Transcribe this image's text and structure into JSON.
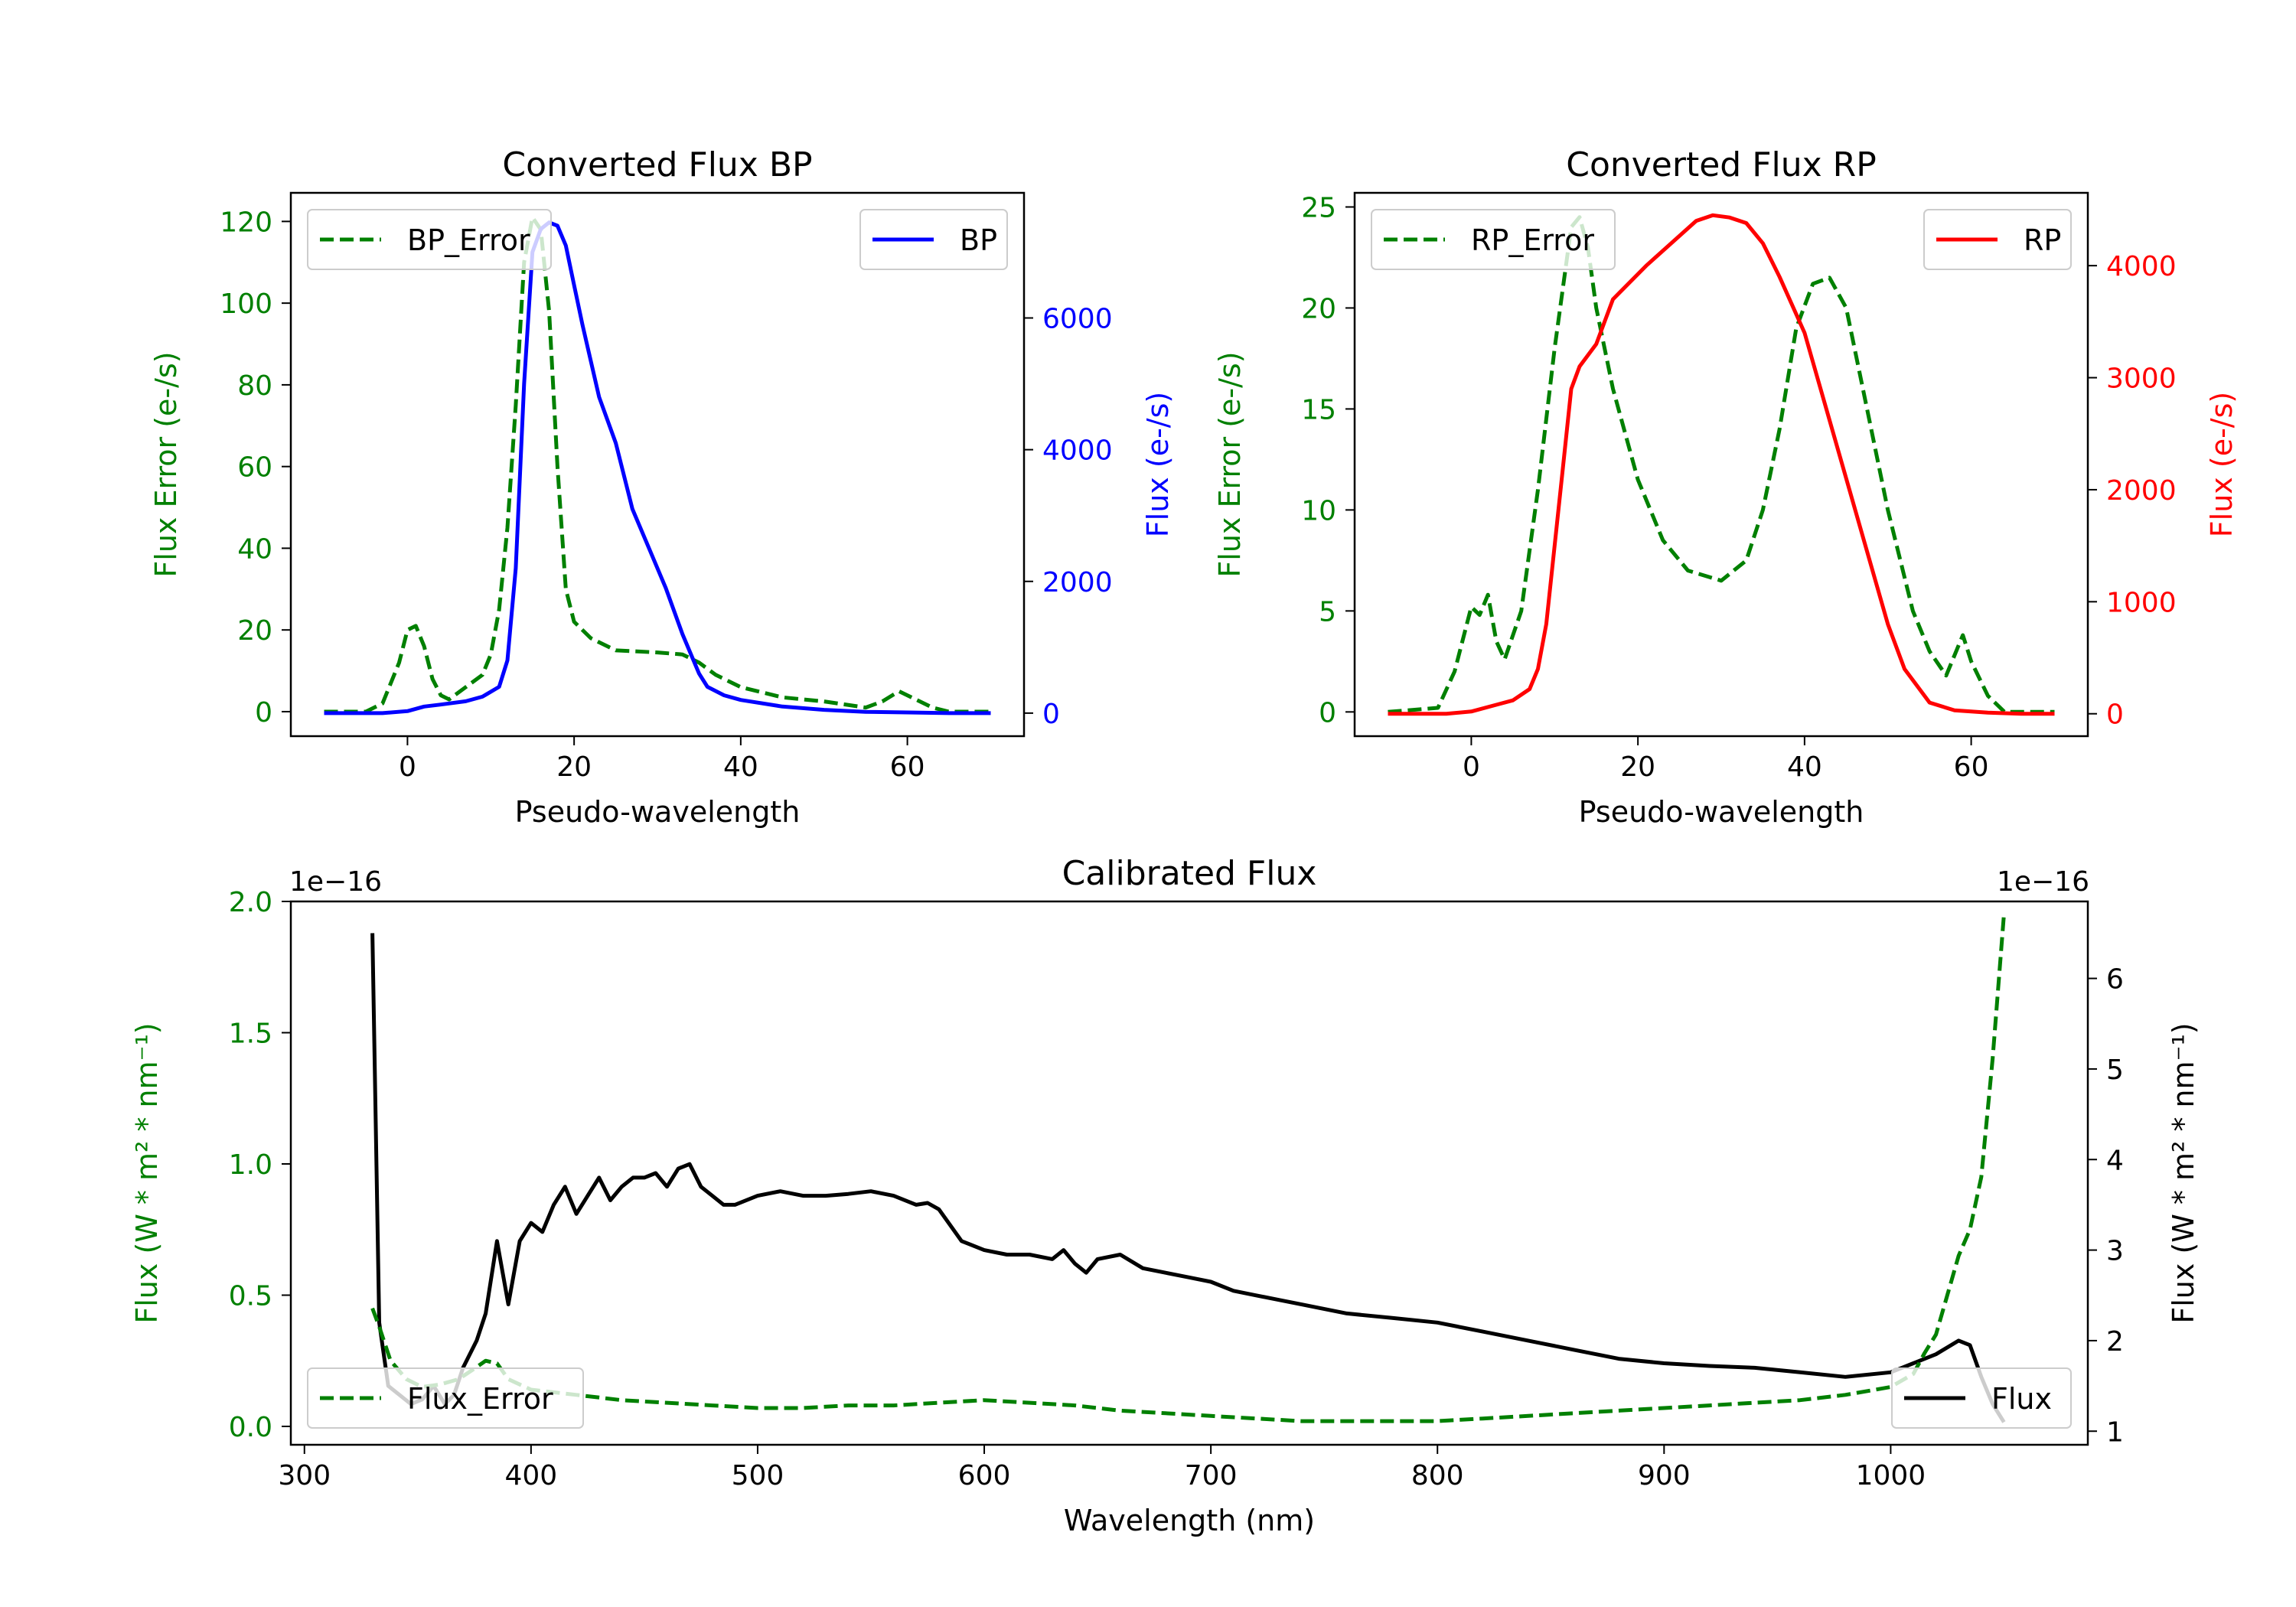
{
  "chart_data": [
    {
      "id": "bp",
      "type": "line",
      "title": "Converted Flux BP",
      "xlabel": "Pseudo-wavelength",
      "ylabel_left": "Flux Error (e-/s)",
      "ylabel_right": "Flux (e-/s)",
      "xlim": [
        -14,
        74
      ],
      "ylim_left": [
        -6,
        127
      ],
      "ylim_right": [
        -350,
        7900
      ],
      "xticks": [
        0,
        20,
        40,
        60
      ],
      "yticks_left": [
        0,
        20,
        40,
        60,
        80,
        100,
        120
      ],
      "yticks_right": [
        0,
        2000,
        4000,
        6000
      ],
      "left_color": "#008000",
      "right_color": "#0000ff",
      "legend_left": "top-left",
      "legend_right": "top-right",
      "series": [
        {
          "name": "BP_Error",
          "axis": "left",
          "style": "dashed",
          "color": "#008000",
          "x": [
            -10,
            -5,
            -3,
            -1,
            0,
            1,
            2,
            3,
            4,
            5,
            7,
            9,
            10,
            11,
            12,
            13,
            14,
            15,
            16,
            17,
            18,
            19,
            20,
            22,
            25,
            30,
            33,
            35,
            37,
            40,
            45,
            50,
            55,
            57,
            59,
            61,
            63,
            65,
            70
          ],
          "y": [
            0,
            0,
            2,
            12,
            20,
            21,
            16,
            8,
            4,
            3,
            6,
            9,
            14,
            25,
            45,
            75,
            110,
            121,
            118,
            98,
            60,
            30,
            22,
            18,
            15,
            14.5,
            14,
            12,
            9,
            6,
            3.5,
            2.5,
            1,
            2.5,
            5,
            3,
            1,
            0,
            0
          ]
        },
        {
          "name": "BP",
          "axis": "right",
          "style": "solid",
          "color": "#0000ff",
          "x": [
            -10,
            -3,
            0,
            2,
            4,
            7,
            9,
            11,
            12,
            13,
            14,
            15,
            16,
            17,
            18,
            19,
            20,
            21,
            23,
            25,
            27,
            29,
            31,
            33,
            35,
            36,
            38,
            40,
            45,
            50,
            55,
            60,
            65,
            70
          ],
          "y": [
            0,
            0,
            30,
            100,
            130,
            180,
            250,
            400,
            800,
            2200,
            5000,
            7000,
            7350,
            7450,
            7400,
            7100,
            6500,
            5900,
            4800,
            4100,
            3100,
            2500,
            1900,
            1200,
            600,
            400,
            270,
            200,
            100,
            50,
            20,
            10,
            0,
            0
          ]
        }
      ]
    },
    {
      "id": "rp",
      "type": "line",
      "title": "Converted Flux RP",
      "xlabel": "Pseudo-wavelength",
      "ylabel_left": "Flux Error (e-/s)",
      "ylabel_right": "Flux (e-/s)",
      "xlim": [
        -14,
        74
      ],
      "ylim_left": [
        -1.2,
        25.7
      ],
      "ylim_right": [
        -200,
        4650
      ],
      "xticks": [
        0,
        20,
        40,
        60
      ],
      "yticks_left": [
        0,
        5,
        10,
        15,
        20,
        25
      ],
      "yticks_right": [
        0,
        1000,
        2000,
        3000,
        4000
      ],
      "left_color": "#008000",
      "right_color": "#ff0000",
      "legend_left": "top-left",
      "legend_right": "top-right",
      "series": [
        {
          "name": "RP_Error",
          "axis": "left",
          "style": "dashed",
          "color": "#008000",
          "x": [
            -10,
            -4,
            -2,
            0,
            1,
            2,
            3,
            4,
            6,
            8,
            10,
            12,
            13,
            14,
            15,
            17,
            20,
            23,
            26,
            30,
            33,
            35,
            37,
            39,
            41,
            43,
            45,
            47,
            50,
            53,
            55,
            57,
            59,
            60,
            62,
            64,
            70
          ],
          "y": [
            0,
            0.2,
            2,
            5.2,
            4.8,
            5.8,
            3.5,
            2.6,
            5,
            11,
            18,
            24,
            24.5,
            23,
            20,
            16,
            11.5,
            8.5,
            7,
            6.5,
            7.5,
            10,
            14,
            19,
            21.2,
            21.5,
            20,
            16,
            10,
            5,
            3,
            1.8,
            3.8,
            2.5,
            0.8,
            0,
            0
          ]
        },
        {
          "name": "RP",
          "axis": "right",
          "style": "solid",
          "color": "#ff0000",
          "x": [
            -10,
            -3,
            0,
            3,
            5,
            7,
            8,
            9,
            10,
            11,
            12,
            13,
            15,
            17,
            19,
            21,
            24,
            27,
            29,
            31,
            33,
            35,
            37,
            40,
            45,
            50,
            52,
            55,
            58,
            62,
            66,
            70
          ],
          "y": [
            0,
            0,
            20,
            80,
            120,
            220,
            400,
            800,
            1500,
            2200,
            2900,
            3100,
            3300,
            3700,
            3850,
            4000,
            4200,
            4400,
            4450,
            4430,
            4380,
            4200,
            3900,
            3400,
            2100,
            800,
            400,
            100,
            30,
            10,
            0,
            0
          ]
        }
      ]
    },
    {
      "id": "cal",
      "type": "line",
      "title": "Calibrated Flux",
      "xlabel": "Wavelength (nm)",
      "ylabel_left": "Flux (W * m² * nm⁻¹)",
      "ylabel_right": "Flux (W * m² * nm⁻¹)",
      "offset_left": "1e−16",
      "offset_right": "1e−16",
      "xlim": [
        294,
        1087
      ],
      "ylim_left": [
        -0.07,
        2.0
      ],
      "ylim_right": [
        0.85,
        6.85
      ],
      "xticks": [
        300,
        400,
        500,
        600,
        700,
        800,
        900,
        1000
      ],
      "yticks_left": [
        0.0,
        0.5,
        1.0,
        1.5,
        2.0
      ],
      "yticks_right": [
        1,
        2,
        3,
        4,
        5,
        6
      ],
      "left_color": "#008000",
      "right_color": "#000000",
      "legend_left": "bottom-left",
      "legend_right": "bottom-right",
      "series": [
        {
          "name": "Flux",
          "axis": "right",
          "style": "solid",
          "color": "#000000",
          "x": [
            330,
            333,
            337,
            342,
            347,
            352,
            357,
            362,
            366,
            370,
            376,
            380,
            385,
            390,
            395,
            400,
            405,
            410,
            415,
            420,
            425,
            430,
            435,
            440,
            445,
            450,
            455,
            460,
            465,
            470,
            475,
            480,
            485,
            490,
            500,
            510,
            520,
            530,
            540,
            550,
            560,
            570,
            575,
            580,
            590,
            600,
            610,
            620,
            630,
            635,
            640,
            645,
            650,
            660,
            670,
            680,
            690,
            700,
            710,
            720,
            730,
            740,
            760,
            780,
            800,
            820,
            840,
            860,
            880,
            900,
            920,
            940,
            960,
            980,
            1000,
            1010,
            1020,
            1030,
            1035,
            1040,
            1045,
            1050
          ],
          "y": [
            6.5,
            2.2,
            1.5,
            1.4,
            1.3,
            1.35,
            1.5,
            1.3,
            1.4,
            1.7,
            2.0,
            2.3,
            3.1,
            2.4,
            3.1,
            3.3,
            3.2,
            3.5,
            3.7,
            3.4,
            3.6,
            3.8,
            3.55,
            3.7,
            3.8,
            3.8,
            3.85,
            3.7,
            3.9,
            3.95,
            3.7,
            3.6,
            3.5,
            3.5,
            3.6,
            3.65,
            3.6,
            3.6,
            3.62,
            3.65,
            3.6,
            3.5,
            3.52,
            3.45,
            3.1,
            3.0,
            2.95,
            2.95,
            2.9,
            3.0,
            2.85,
            2.75,
            2.9,
            2.95,
            2.8,
            2.75,
            2.7,
            2.65,
            2.55,
            2.5,
            2.45,
            2.4,
            2.3,
            2.25,
            2.2,
            2.1,
            2.0,
            1.9,
            1.8,
            1.75,
            1.72,
            1.7,
            1.65,
            1.6,
            1.65,
            1.75,
            1.85,
            2.0,
            1.95,
            1.6,
            1.3,
            1.1
          ]
        },
        {
          "name": "Flux_Error",
          "axis": "left",
          "style": "dashed",
          "color": "#008000",
          "x": [
            330,
            333,
            338,
            345,
            352,
            360,
            368,
            375,
            380,
            385,
            390,
            400,
            420,
            440,
            460,
            480,
            500,
            520,
            540,
            560,
            580,
            600,
            620,
            640,
            660,
            680,
            700,
            720,
            740,
            760,
            780,
            800,
            820,
            840,
            860,
            880,
            900,
            920,
            940,
            960,
            980,
            1000,
            1010,
            1015,
            1020,
            1025,
            1030,
            1035,
            1040,
            1045,
            1050
          ],
          "y": [
            0.45,
            0.38,
            0.25,
            0.18,
            0.15,
            0.16,
            0.18,
            0.22,
            0.25,
            0.24,
            0.18,
            0.14,
            0.12,
            0.1,
            0.09,
            0.08,
            0.07,
            0.07,
            0.08,
            0.08,
            0.09,
            0.1,
            0.09,
            0.08,
            0.06,
            0.05,
            0.04,
            0.03,
            0.02,
            0.02,
            0.02,
            0.02,
            0.03,
            0.04,
            0.05,
            0.06,
            0.07,
            0.08,
            0.09,
            0.1,
            0.12,
            0.15,
            0.2,
            0.28,
            0.35,
            0.5,
            0.65,
            0.75,
            0.95,
            1.4,
            1.95
          ]
        }
      ]
    }
  ]
}
